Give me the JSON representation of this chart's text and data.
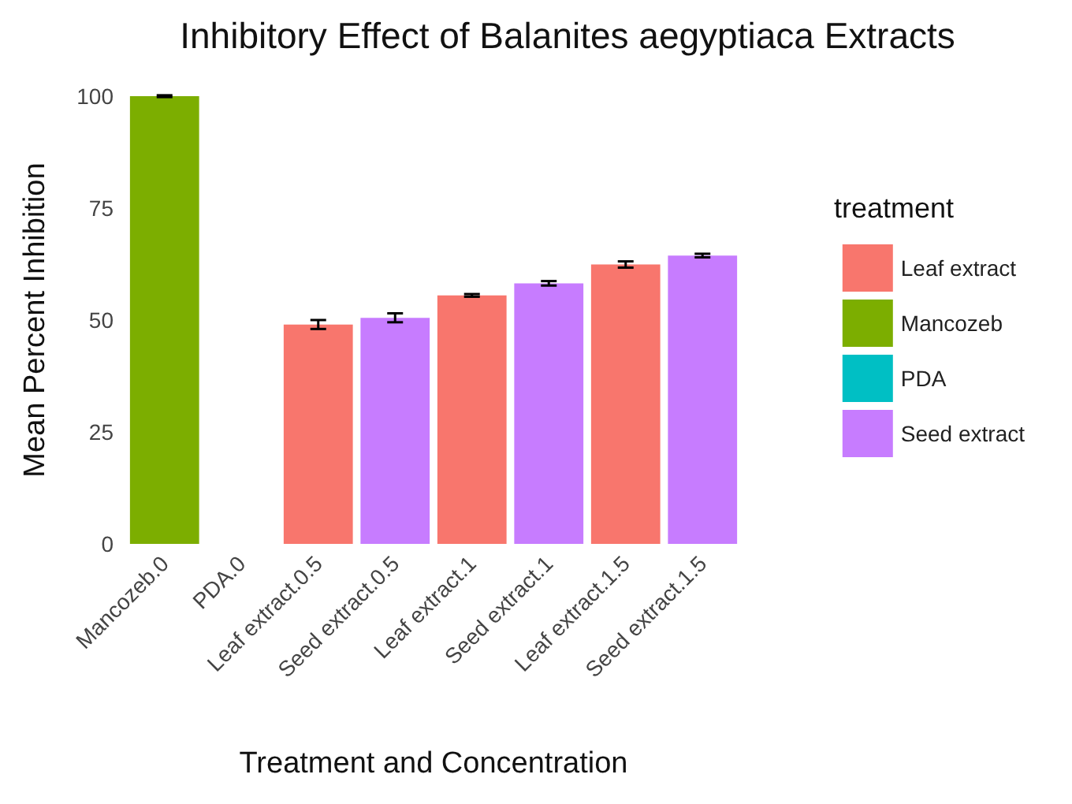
{
  "chart_data": {
    "type": "bar",
    "title": "Inhibitory Effect of Balanites aegyptiaca Extracts",
    "xlabel": "Treatment and Concentration",
    "ylabel": "Mean Percent Inhibition",
    "legend_title": "treatment",
    "categories": [
      "Mancozeb.0",
      "PDA.0",
      "Leaf extract.0.5",
      "Seed extract.0.5",
      "Leaf extract.1",
      "Seed extract.1",
      "Leaf extract.1.5",
      "Seed extract.1.5"
    ],
    "series": [
      {
        "name": "Leaf extract",
        "color": "#f8766d",
        "values": [
          null,
          null,
          49.0,
          null,
          55.5,
          null,
          62.4,
          null
        ],
        "errors": [
          null,
          null,
          1.0,
          null,
          0.3,
          null,
          0.7,
          null
        ]
      },
      {
        "name": "Mancozeb",
        "color": "#7cae00",
        "values": [
          100,
          null,
          null,
          null,
          null,
          null,
          null,
          null
        ],
        "errors": [
          0.2,
          null,
          null,
          null,
          null,
          null,
          null,
          null
        ]
      },
      {
        "name": "PDA",
        "color": "#00bfc4",
        "values": [
          null,
          0,
          null,
          null,
          null,
          null,
          null,
          null
        ],
        "errors": [
          null,
          null,
          null,
          null,
          null,
          null,
          null,
          null
        ]
      },
      {
        "name": "Seed extract",
        "color": "#c77cff",
        "values": [
          null,
          null,
          null,
          50.5,
          null,
          58.2,
          null,
          64.4
        ],
        "errors": [
          null,
          null,
          null,
          1.0,
          null,
          0.5,
          null,
          0.4
        ]
      }
    ],
    "ylim": [
      0,
      100
    ],
    "yticks": [
      0,
      25,
      50,
      75,
      100
    ],
    "grid": false,
    "legend": "right"
  }
}
